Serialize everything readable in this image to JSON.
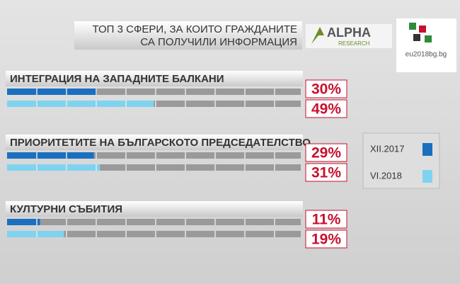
{
  "chart_data": {
    "type": "bar",
    "orientation": "horizontal",
    "title": [
      "ТОП 3 СФЕРИ, ЗА КОИТО ГРАЖДАНИТЕ",
      "СА ПОЛУЧИЛИ ИНФОРМАЦИЯ"
    ],
    "categories": [
      "ИНТЕГРАЦИЯ НА ЗАПАДНИТЕ БАЛКАНИ",
      "ПРИОРИТЕТИТЕ НА БЪЛГАРСКОТО ПРЕДСЕДАТЕЛСТВО",
      "КУЛТУРНИ СЪБИТИЯ"
    ],
    "series": [
      {
        "name": "XII.2017",
        "color": "#1a6fbf",
        "values": [
          30,
          29,
          11
        ],
        "value_labels": [
          "30%",
          "29%",
          "11%"
        ]
      },
      {
        "name": "VI.2018",
        "color": "#7fd3f0",
        "values": [
          49,
          31,
          19
        ],
        "value_labels": [
          "49%",
          "31%",
          "19%"
        ]
      }
    ],
    "xlim": [
      0,
      100
    ]
  },
  "branding": {
    "alpha": "ALPHA",
    "research": "RESEARCH",
    "eu": "eu2018bg.bg"
  }
}
